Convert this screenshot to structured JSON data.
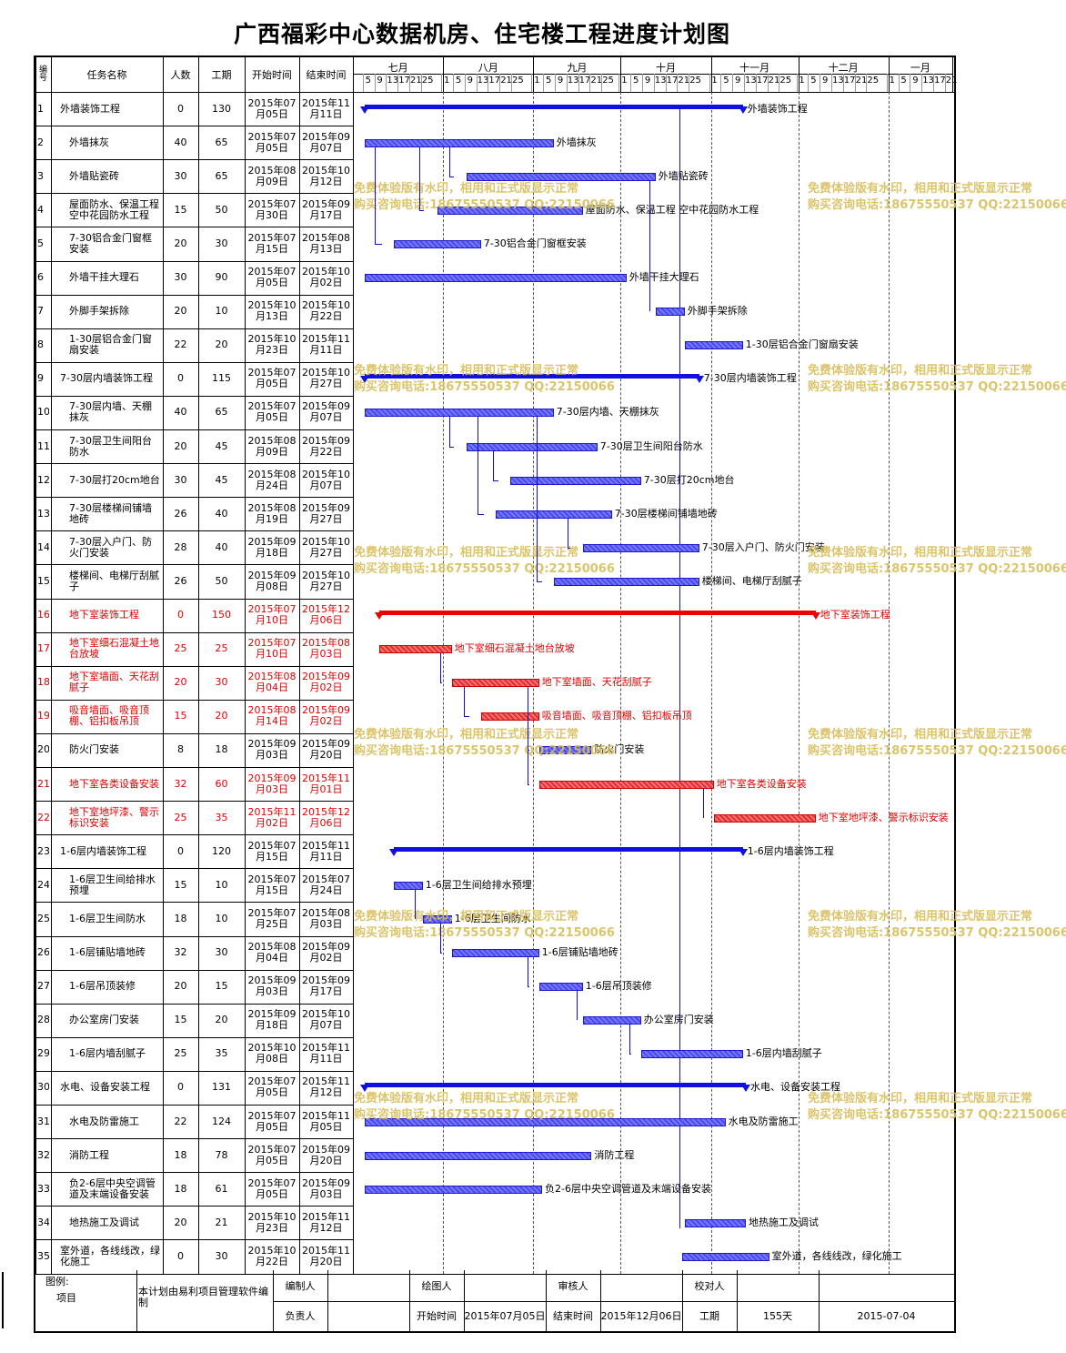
{
  "title": "广西福彩中心数据机房、住宅楼工程进度计划图",
  "headers": {
    "no": "编号",
    "name": "任务名称",
    "people": "人数",
    "duration": "工期",
    "start": "开始时间",
    "end": "结束时间"
  },
  "months": [
    "七月",
    "八月",
    "九月",
    "十月",
    "十一月",
    "十二月",
    "一月"
  ],
  "days_row": [
    "5",
    "9",
    "13",
    "17",
    "21",
    "25"
  ],
  "days_row_first": [
    "1",
    "5",
    "9",
    "13",
    "17",
    "21",
    "25"
  ],
  "watermark": {
    "line1": "免费体验版有水印，相用和正式版显示正常",
    "line2": "购买咨询电话:18675550537 QQ:22150066"
  },
  "tasks": [
    {
      "no": "1",
      "name": "外墙装饰工程",
      "people": "0",
      "duration": "130",
      "start": "2015年07月05日",
      "end": "2015年11月11日",
      "color": "blue"
    },
    {
      "no": "2",
      "name": "外墙抹灰",
      "people": "40",
      "duration": "65",
      "start": "2015年07月05日",
      "end": "2015年09月07日",
      "color": "blue"
    },
    {
      "no": "3",
      "name": "外墙贴瓷砖",
      "people": "30",
      "duration": "65",
      "start": "2015年08月09日",
      "end": "2015年10月12日",
      "color": "blue"
    },
    {
      "no": "4",
      "name": "屋面防水、保温工程 空中花园防水工程",
      "people": "15",
      "duration": "50",
      "start": "2015年07月30日",
      "end": "2015年09月17日",
      "color": "blue"
    },
    {
      "no": "5",
      "name": "7-30铝合金门窗框安装",
      "people": "20",
      "duration": "30",
      "start": "2015年07月15日",
      "end": "2015年08月13日",
      "color": "blue"
    },
    {
      "no": "6",
      "name": "外墙干挂大理石",
      "people": "30",
      "duration": "90",
      "start": "2015年07月05日",
      "end": "2015年10月02日",
      "color": "blue"
    },
    {
      "no": "7",
      "name": "外脚手架拆除",
      "people": "20",
      "duration": "10",
      "start": "2015年10月13日",
      "end": "2015年10月22日",
      "color": "blue"
    },
    {
      "no": "8",
      "name": "1-30层铝合金门窗扇安装",
      "people": "22",
      "duration": "20",
      "start": "2015年10月23日",
      "end": "2015年11月11日",
      "color": "blue"
    },
    {
      "no": "9",
      "name": "7-30层内墙装饰工程",
      "people": "0",
      "duration": "115",
      "start": "2015年07月05日",
      "end": "2015年10月27日",
      "color": "blue"
    },
    {
      "no": "10",
      "name": "7-30层内墙、天棚抹灰",
      "people": "40",
      "duration": "65",
      "start": "2015年07月05日",
      "end": "2015年09月07日",
      "color": "blue"
    },
    {
      "no": "11",
      "name": "7-30层卫生间阳台防水",
      "people": "20",
      "duration": "45",
      "start": "2015年08月09日",
      "end": "2015年09月22日",
      "color": "blue"
    },
    {
      "no": "12",
      "name": "7-30层打20cm地台",
      "people": "30",
      "duration": "45",
      "start": "2015年08月24日",
      "end": "2015年10月07日",
      "color": "blue"
    },
    {
      "no": "13",
      "name": "7-30层楼梯间铺墙地砖",
      "people": "26",
      "duration": "40",
      "start": "2015年08月19日",
      "end": "2015年09月27日",
      "color": "blue"
    },
    {
      "no": "14",
      "name": "7-30层入户门、防火门安装",
      "people": "28",
      "duration": "40",
      "start": "2015年09月18日",
      "end": "2015年10月27日",
      "color": "blue"
    },
    {
      "no": "15",
      "name": "楼梯间、电梯厅刮腻子",
      "people": "26",
      "duration": "50",
      "start": "2015年09月08日",
      "end": "2015年10月27日",
      "color": "blue"
    },
    {
      "no": "16",
      "name": "地下室装饰工程",
      "people": "0",
      "duration": "150",
      "start": "2015年07月10日",
      "end": "2015年12月06日",
      "color": "red"
    },
    {
      "no": "17",
      "name": "地下室细石混凝土地台放坡",
      "people": "25",
      "duration": "25",
      "start": "2015年07月10日",
      "end": "2015年08月03日",
      "color": "red"
    },
    {
      "no": "18",
      "name": "地下室墙面、天花刮腻子",
      "people": "20",
      "duration": "30",
      "start": "2015年08月04日",
      "end": "2015年09月02日",
      "color": "red"
    },
    {
      "no": "19",
      "name": "吸音墙面、吸音顶棚、铝扣板吊顶",
      "people": "15",
      "duration": "20",
      "start": "2015年08月14日",
      "end": "2015年09月02日",
      "color": "red"
    },
    {
      "no": "20",
      "name": "防火门安装",
      "people": "8",
      "duration": "18",
      "start": "2015年09月03日",
      "end": "2015年09月20日",
      "color": "blue"
    },
    {
      "no": "21",
      "name": "地下室各类设备安装",
      "people": "32",
      "duration": "60",
      "start": "2015年09月03日",
      "end": "2015年11月01日",
      "color": "red"
    },
    {
      "no": "22",
      "name": "地下室地坪漆、警示标识安装",
      "people": "25",
      "duration": "35",
      "start": "2015年11月02日",
      "end": "2015年12月06日",
      "color": "red"
    },
    {
      "no": "23",
      "name": "1-6层内墙装饰工程",
      "people": "0",
      "duration": "120",
      "start": "2015年07月15日",
      "end": "2015年11月11日",
      "color": "blue"
    },
    {
      "no": "24",
      "name": "1-6层卫生间给排水预埋",
      "people": "15",
      "duration": "10",
      "start": "2015年07月15日",
      "end": "2015年07月24日",
      "color": "blue"
    },
    {
      "no": "25",
      "name": "1-6层卫生间防水",
      "people": "18",
      "duration": "10",
      "start": "2015年07月25日",
      "end": "2015年08月03日",
      "color": "blue"
    },
    {
      "no": "26",
      "name": "1-6层铺贴墙地砖",
      "people": "32",
      "duration": "30",
      "start": "2015年08月04日",
      "end": "2015年09月02日",
      "color": "blue"
    },
    {
      "no": "27",
      "name": "1-6层吊顶装修",
      "people": "20",
      "duration": "15",
      "start": "2015年09月03日",
      "end": "2015年09月17日",
      "color": "blue"
    },
    {
      "no": "28",
      "name": "办公室房门安装",
      "people": "15",
      "duration": "20",
      "start": "2015年09月18日",
      "end": "2015年10月07日",
      "color": "blue"
    },
    {
      "no": "29",
      "name": "1-6层内墙刮腻子",
      "people": "25",
      "duration": "35",
      "start": "2015年10月08日",
      "end": "2015年11月11日",
      "color": "blue"
    },
    {
      "no": "30",
      "name": "水电、设备安装工程",
      "people": "0",
      "duration": "131",
      "start": "2015年07月05日",
      "end": "2015年11月12日",
      "color": "blue"
    },
    {
      "no": "31",
      "name": "水电及防雷施工",
      "people": "22",
      "duration": "124",
      "start": "2015年07月05日",
      "end": "2015年11月05日",
      "color": "blue"
    },
    {
      "no": "32",
      "name": "消防工程",
      "people": "18",
      "duration": "78",
      "start": "2015年07月05日",
      "end": "2015年09月20日",
      "color": "blue"
    },
    {
      "no": "33",
      "name": "负2-6层中央空调管道及末端设备安装",
      "people": "18",
      "duration": "61",
      "start": "2015年07月05日",
      "end": "2015年09月03日",
      "color": "blue"
    },
    {
      "no": "34",
      "name": "地热施工及调试",
      "people": "20",
      "duration": "21",
      "start": "2015年10月23日",
      "end": "2015年11月12日",
      "color": "blue"
    },
    {
      "no": "35",
      "name": "室外道，各线线改，绿化施工",
      "people": "0",
      "duration": "30",
      "start": "2015年10月22日",
      "end": "2015年11月20日",
      "color": "blue"
    }
  ],
  "bar_labels": [
    "外墙装饰工程",
    "外墙抹灰",
    "外墙贴瓷砖",
    "屋面防水、保温工程 空中花园防水工程",
    "7-30铝合金门窗框安装",
    "外墙干挂大理石",
    "外脚手架拆除",
    "1-30层铝合金门窗扇安装",
    "7-30层内墙装饰工程",
    "7-30层内墙、天棚抹灰",
    "7-30层卫生间阳台防水",
    "7-30层打20cm地台",
    "7-30层楼梯间铺墙地砖",
    "7-30层入户门、防火门安装",
    "楼梯间、电梯厅刮腻子",
    "地下室装饰工程",
    "地下室细石混凝土地台放坡",
    "地下室墙面、天花刮腻子",
    "吸音墙面、吸音顶棚、铝扣板吊顶",
    "防火门安装",
    "地下室各类设备安装",
    "地下室地坪漆、警示标识安装",
    "1-6层内墙装饰工程",
    "1-6层卫生间给排水预埋",
    "1-6层卫生间防水",
    "1-6层铺贴墙地砖",
    "1-6层吊顶装修",
    "办公室房门安装",
    "1-6层内墙刮腻子",
    "水电、设备安装工程",
    "水电及防雷施工",
    "消防工程",
    "负2-6层中央空调管道及末端设备安装",
    "地热施工及调试",
    "室外道，各线线改，绿化施工"
  ],
  "footer": {
    "legend_label": "图例:",
    "legend_item": "项目",
    "software_note": "本计划由易利项目管理软件编制",
    "editor_label": "编制人",
    "drawer_label": "绘图人",
    "reviewer_label": "审核人",
    "checker_label": "校对人",
    "owner_label": "负责人",
    "start_label": "开始时间",
    "start_value": "2015年07月05日",
    "end_label": "结束时间",
    "end_value": "2015年12月06日",
    "duration_label": "工期",
    "duration_value": "155天",
    "date_value": "2015-07-04"
  }
}
